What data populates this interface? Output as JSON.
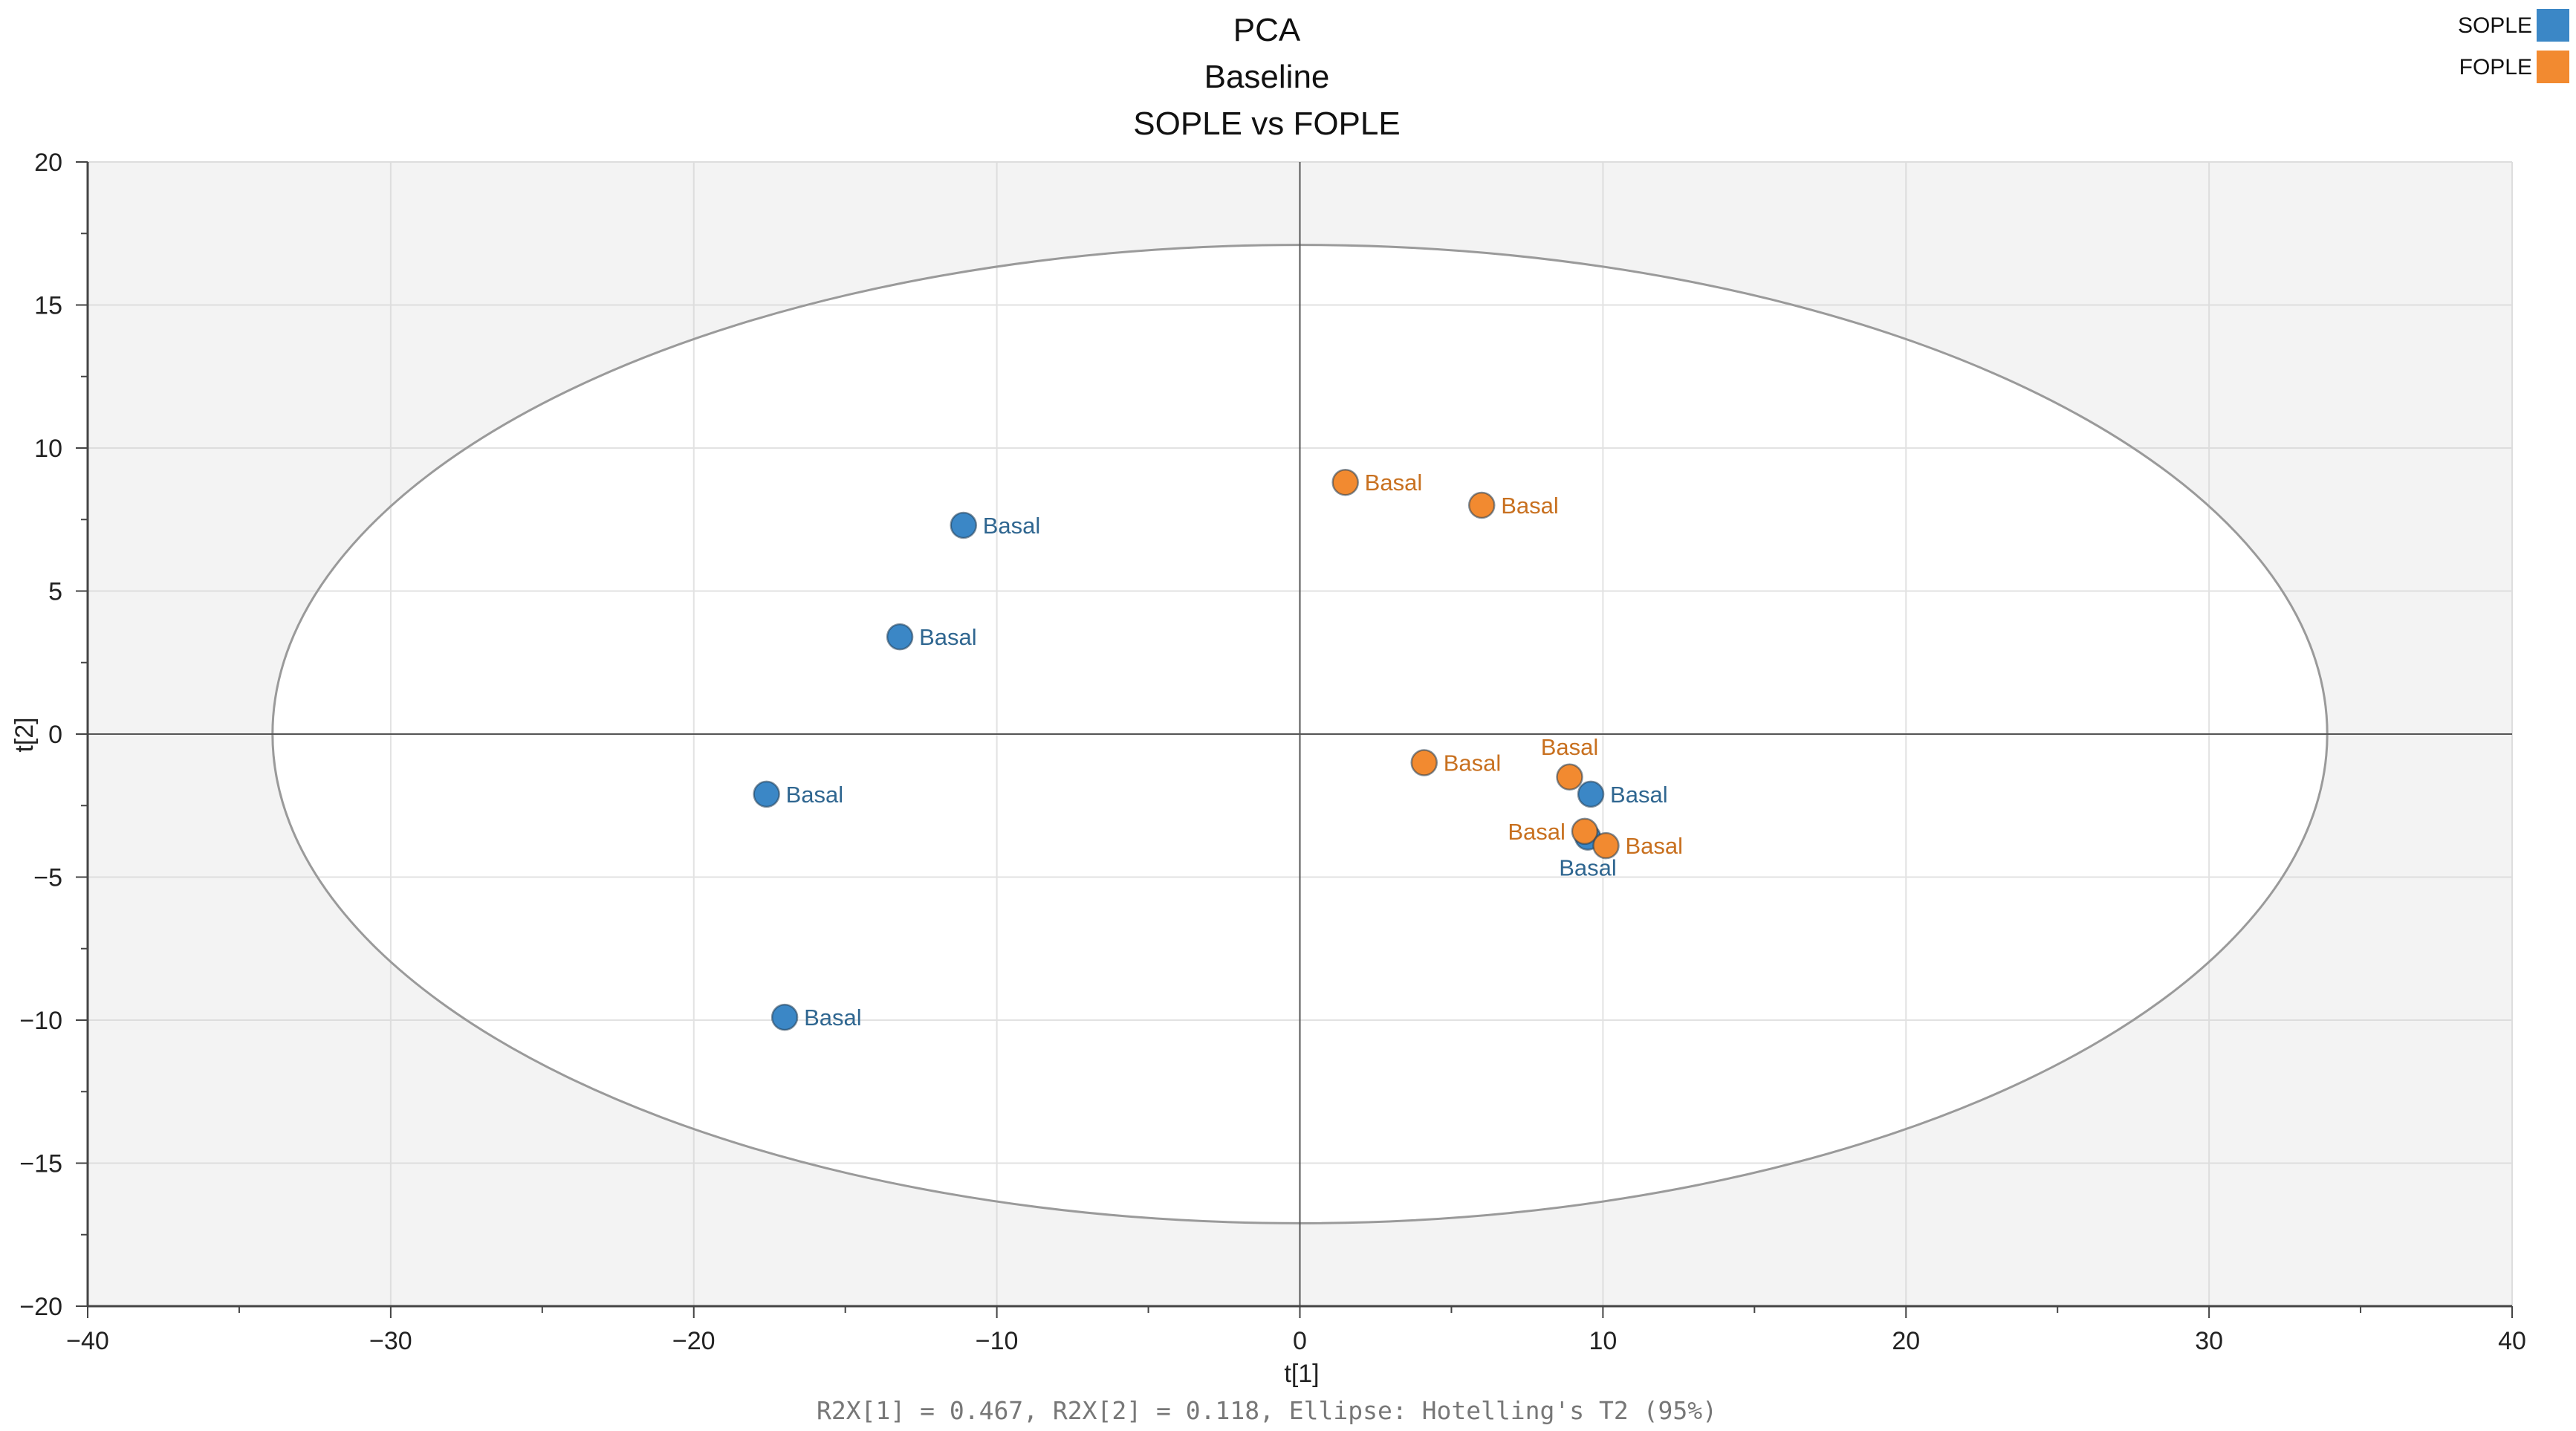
{
  "chart_data": {
    "type": "scatter",
    "title": [
      "PCA",
      "Baseline",
      "SOPLE vs FOPLE"
    ],
    "xlabel": "t[1]",
    "ylabel": "t[2]",
    "xlim": [
      -40,
      40
    ],
    "ylim": [
      -20,
      20
    ],
    "xticks": [
      -40,
      -30,
      -20,
      -10,
      0,
      10,
      20,
      30,
      40
    ],
    "yticks": [
      -20,
      -15,
      -10,
      -5,
      0,
      5,
      10,
      15,
      20
    ],
    "xtick_labels": [
      "−40",
      "−30",
      "−20",
      "−10",
      "0",
      "10",
      "20",
      "30",
      "40"
    ],
    "ytick_labels": [
      "−20",
      "−15",
      "−10",
      "−5",
      "0",
      "5",
      "10",
      "15",
      "20"
    ],
    "grid": true,
    "footnote": "R2X[1] = 0.467, R2X[2] = 0.118, Ellipse: Hotelling's T2 (95%)",
    "ellipse": {
      "center": [
        0,
        0
      ],
      "rx": 33.9,
      "ry": 17.1,
      "label": "Hotelling's T2 (95%)"
    },
    "legend_position": "top-right",
    "series": [
      {
        "name": "SOPLE",
        "color": "#3b87c6",
        "label_color": "#2f6690",
        "points": [
          {
            "x": -11.1,
            "y": 7.3,
            "label": "Basal",
            "label_pos": "right"
          },
          {
            "x": -13.2,
            "y": 3.4,
            "label": "Basal",
            "label_pos": "right"
          },
          {
            "x": -17.6,
            "y": -2.1,
            "label": "Basal",
            "label_pos": "right"
          },
          {
            "x": -17.0,
            "y": -9.9,
            "label": "Basal",
            "label_pos": "right"
          },
          {
            "x": 9.6,
            "y": -2.1,
            "label": "Basal",
            "label_pos": "right"
          },
          {
            "x": 9.5,
            "y": -3.6,
            "label": "Basal",
            "label_pos": "below"
          }
        ]
      },
      {
        "name": "FOPLE",
        "color": "#f28a30",
        "label_color": "#c8701f",
        "points": [
          {
            "x": 1.5,
            "y": 8.8,
            "label": "Basal",
            "label_pos": "right"
          },
          {
            "x": 6.0,
            "y": 8.0,
            "label": "Basal",
            "label_pos": "right"
          },
          {
            "x": 4.1,
            "y": -1.0,
            "label": "Basal",
            "label_pos": "right"
          },
          {
            "x": 8.9,
            "y": -1.5,
            "label": "Basal",
            "label_pos": "above"
          },
          {
            "x": 9.4,
            "y": -3.4,
            "label": "Basal",
            "label_pos": "left"
          },
          {
            "x": 10.1,
            "y": -3.9,
            "label": "Basal",
            "label_pos": "right"
          }
        ]
      }
    ]
  }
}
